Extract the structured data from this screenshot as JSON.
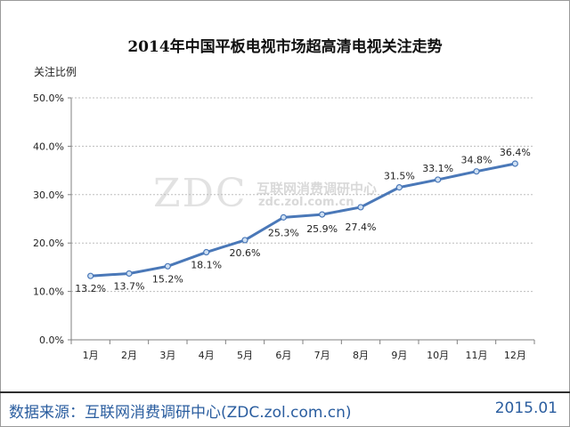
{
  "title": "2014年中国平板电视市场超高清电视关注走势",
  "chart_data": {
    "type": "line",
    "title": "2014年中国平板电视市场超高清电视关注走势",
    "ylabel": "关注比例",
    "xlabel": "",
    "categories": [
      "1月",
      "2月",
      "3月",
      "4月",
      "5月",
      "6月",
      "7月",
      "8月",
      "9月",
      "10月",
      "11月",
      "12月"
    ],
    "series": [
      {
        "name": "关注比例",
        "values": [
          13.2,
          13.7,
          15.2,
          18.1,
          20.6,
          25.3,
          25.9,
          27.4,
          31.5,
          33.1,
          34.8,
          36.4
        ],
        "labels": [
          "13.2%",
          "13.7%",
          "15.2%",
          "18.1%",
          "20.6%",
          "25.3%",
          "25.9%",
          "27.4%",
          "31.5%",
          "33.1%",
          "34.8%",
          "36.4%"
        ]
      }
    ],
    "ylim": [
      0,
      50
    ],
    "yticks": [
      0,
      10,
      20,
      30,
      40,
      50
    ],
    "ytick_labels": [
      "0.0%",
      "10.0%",
      "20.0%",
      "30.0%",
      "40.0%",
      "50.0%"
    ],
    "grid": true,
    "line_color": "#4a78b8",
    "marker_fill": "#cfe0f3"
  },
  "watermark": {
    "logo": "ZDC",
    "name": "互联网消费调研中心",
    "url": "zdc.zol.com.cn"
  },
  "footer": {
    "source": "数据来源：互联网消费调研中心(ZDC.zol.com.cn)",
    "date": "2015.01"
  }
}
